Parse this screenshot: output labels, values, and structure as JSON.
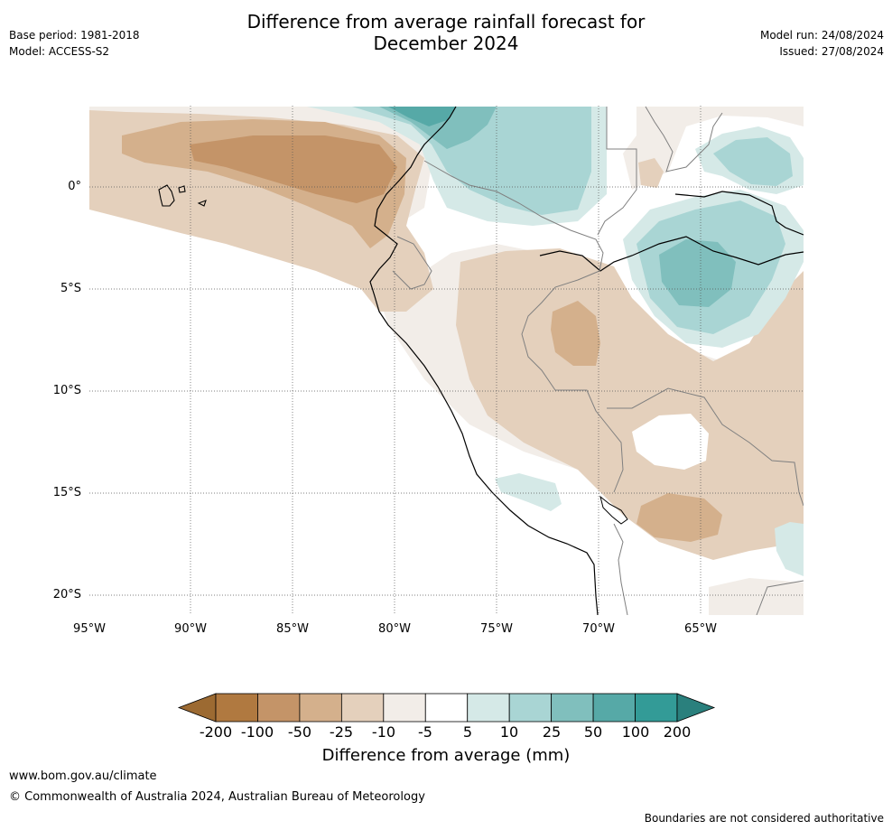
{
  "header": {
    "title_line1": "Difference from average rainfall forecast for",
    "title_line2": "December 2024",
    "base_period": "Base period: 1981-2018",
    "model": "Model: ACCESS-S2",
    "model_run": "Model run: 24/08/2024",
    "issued": "Issued: 27/08/2024"
  },
  "map": {
    "lat_ticks": [
      "0°",
      "5°S",
      "10°S",
      "15°S",
      "20°S"
    ],
    "lon_ticks": [
      "95°W",
      "90°W",
      "85°W",
      "80°W",
      "75°W",
      "70°W",
      "65°W"
    ],
    "ocean_color": "#ffffff",
    "coastline_color": "#000000",
    "border_color": "#808080"
  },
  "colorbar": {
    "label": "Difference from average (mm)",
    "ticks": [
      "-200",
      "-100",
      "-50",
      "-25",
      "-10",
      "-5",
      "5",
      "10",
      "25",
      "50",
      "100",
      "200"
    ],
    "colors": [
      "#9c6a32",
      "#b07940",
      "#c49468",
      "#d4b08c",
      "#e4d0bc",
      "#f2ede8",
      "#ffffff",
      "#d5e9e7",
      "#a9d5d4",
      "#80bfbd",
      "#56a9a7",
      "#339b97",
      "#2a807d"
    ]
  },
  "footer": {
    "url": "www.bom.gov.au/climate",
    "copyright": "© Commonwealth of Australia 2024, Australian Bureau of Meteorology",
    "disclaimer": "Boundaries are not considered authoritative"
  }
}
